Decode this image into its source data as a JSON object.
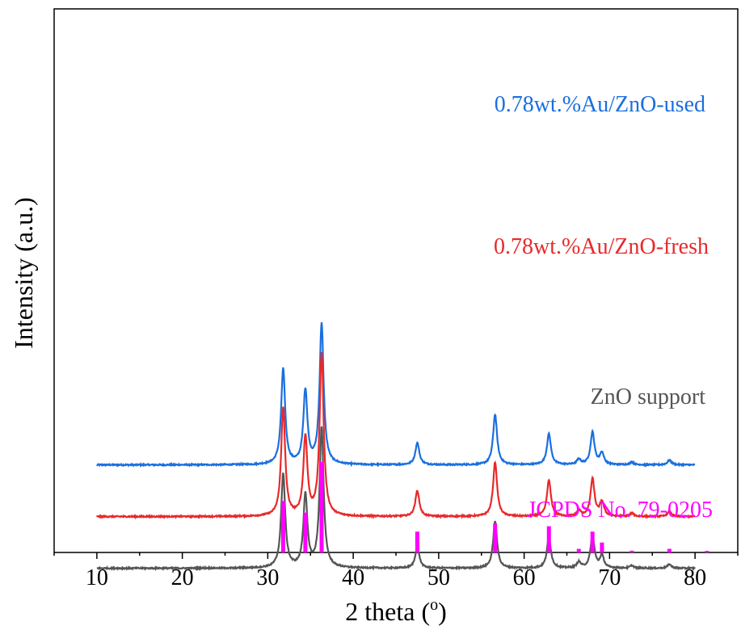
{
  "chart_data": {
    "type": "line",
    "title": "",
    "xlabel": "2 theta (",
    "xlabel_sup": "o",
    "xlabel_end": ")",
    "ylabel": "Intensity (a.u.)",
    "xlim": [
      5,
      85
    ],
    "x_ticks": [
      "10",
      "20",
      "30",
      "40",
      "50",
      "60",
      "70",
      "80"
    ],
    "grid": false,
    "series": [
      {
        "name": "0.78wt.%Au/ZnO-used",
        "color": "#1a6fdf",
        "baseline": 1090,
        "peaks": [
          [
            31.8,
            740
          ],
          [
            34.4,
            570
          ],
          [
            36.3,
            1090
          ],
          [
            47.5,
            170
          ],
          [
            56.6,
            390
          ],
          [
            62.9,
            240
          ],
          [
            66.4,
            40
          ],
          [
            68.0,
            250
          ],
          [
            69.1,
            90
          ],
          [
            72.6,
            20
          ],
          [
            77.0,
            35
          ]
        ]
      },
      {
        "name": "0.78wt.%Au/ZnO-fresh",
        "color": "#e8292a",
        "baseline": 690,
        "peaks": [
          [
            31.8,
            840
          ],
          [
            34.4,
            610
          ],
          [
            36.3,
            1260
          ],
          [
            47.5,
            200
          ],
          [
            56.6,
            420
          ],
          [
            62.9,
            280
          ],
          [
            66.4,
            45
          ],
          [
            68.0,
            290
          ],
          [
            69.1,
            110
          ],
          [
            72.6,
            25
          ],
          [
            77.0,
            40
          ]
        ]
      },
      {
        "name": "ZnO support",
        "color": "#555555",
        "baseline": 290,
        "peaks": [
          [
            31.8,
            730
          ],
          [
            34.4,
            560
          ],
          [
            36.3,
            1080
          ],
          [
            47.5,
            170
          ],
          [
            56.6,
            360
          ],
          [
            62.9,
            240
          ],
          [
            66.4,
            45
          ],
          [
            68.0,
            250
          ],
          [
            69.1,
            95
          ],
          [
            72.6,
            20
          ],
          [
            77.0,
            30
          ]
        ]
      }
    ],
    "reference": {
      "name": "JCPDS No. 79-0205",
      "color": "#ff00ff",
      "lines": [
        [
          31.8,
          57
        ],
        [
          34.4,
          44
        ],
        [
          36.3,
          100
        ],
        [
          47.5,
          23
        ],
        [
          56.6,
          32
        ],
        [
          62.9,
          29
        ],
        [
          66.4,
          4
        ],
        [
          68.0,
          23
        ],
        [
          69.1,
          11
        ],
        [
          72.6,
          2
        ],
        [
          77.0,
          4
        ],
        [
          81.4,
          1
        ]
      ]
    }
  }
}
